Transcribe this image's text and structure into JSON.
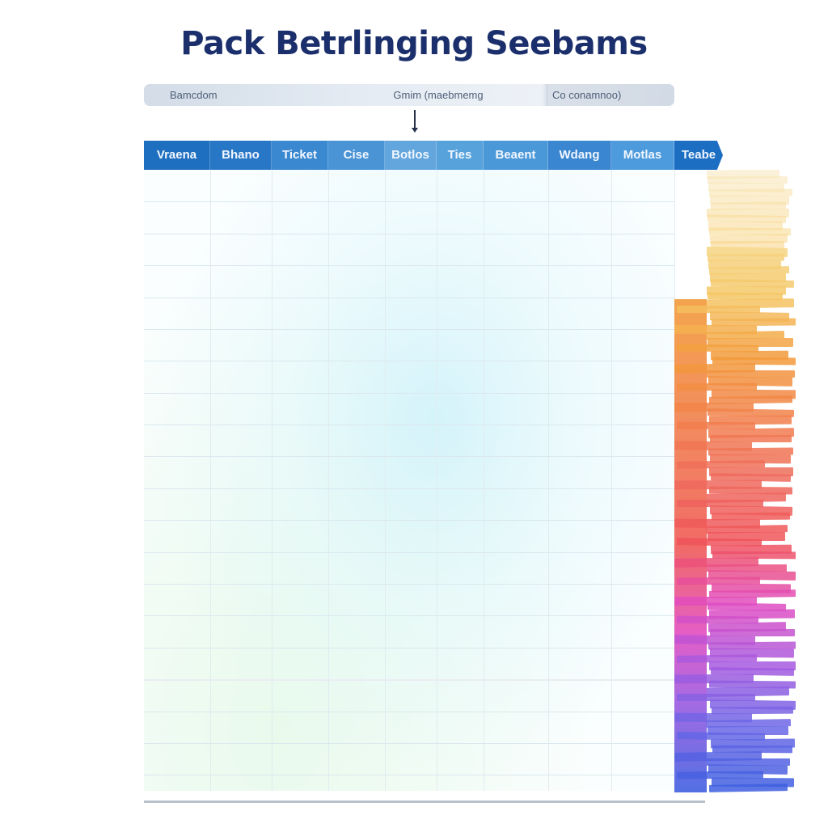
{
  "title": "Pack Betrlinging Seebams",
  "filter_bar": {
    "left_label": "Bamcdom",
    "middle_label": "Gmim (maebmemg",
    "right_label": "Co conamnoo)"
  },
  "columns": [
    {
      "label": "Vraena",
      "color": "#1f6fc0"
    },
    {
      "label": "Bhano",
      "color": "#2877c6"
    },
    {
      "label": "Ticket",
      "color": "#3a88cf"
    },
    {
      "label": "Cise",
      "color": "#4a94d6"
    },
    {
      "label": "Botlos",
      "color": "#62a6dd"
    },
    {
      "label": "Ties",
      "color": "#58a2dc"
    },
    {
      "label": "Beaent",
      "color": "#4b98d9"
    },
    {
      "label": "Wdang",
      "color": "#3a86d0"
    },
    {
      "label": "Motlas",
      "color": "#4d9bdc"
    },
    {
      "label": "Teabe",
      "color": "#1c6ec2"
    }
  ],
  "stack_colors": [
    "#f8e6b8",
    "#f7d78a",
    "#f4c766",
    "#f29a3a",
    "#f17f4c",
    "#ef6a5e",
    "#f0545a",
    "#e14cc0",
    "#a65ae0",
    "#6b67e6",
    "#3f5fe0"
  ],
  "grid": {
    "row_count": 19
  }
}
